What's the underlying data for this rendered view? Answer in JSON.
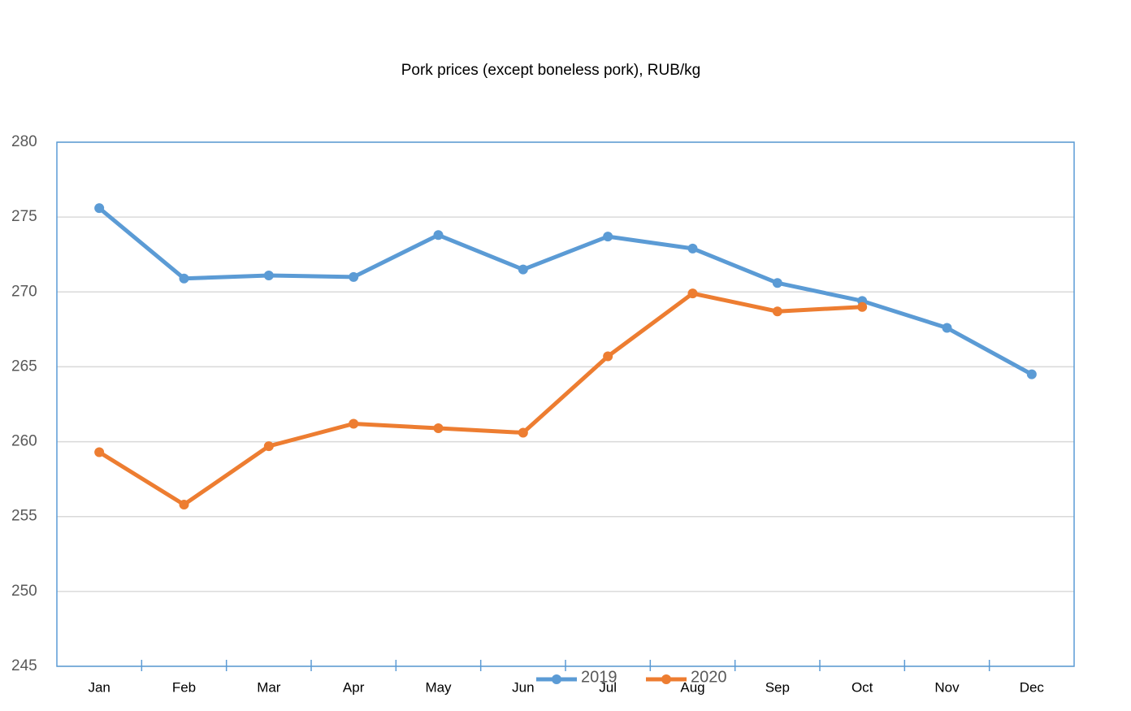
{
  "chart_data": {
    "type": "line",
    "title": "Pork prices (except boneless pork), RUB/kg",
    "categories": [
      "Jan",
      "Feb",
      "Mar",
      "Apr",
      "May",
      "Jun",
      "Jul",
      "Aug",
      "Sep",
      "Oct",
      "Nov",
      "Dec"
    ],
    "series": [
      {
        "name": "2019",
        "color": "#5b9bd5",
        "values": [
          275.6,
          270.9,
          271.1,
          271.0,
          273.8,
          271.5,
          273.7,
          272.9,
          270.6,
          269.4,
          267.6,
          264.5
        ]
      },
      {
        "name": "2020",
        "color": "#ed7d31",
        "values": [
          259.3,
          255.8,
          259.7,
          261.2,
          260.9,
          260.6,
          265.7,
          269.9,
          268.7,
          269.0,
          null,
          null
        ]
      }
    ],
    "ylim": [
      245,
      280
    ],
    "yticks": [
      245,
      250,
      255,
      260,
      265,
      270,
      275,
      280
    ],
    "grid": true,
    "legend": "bottom"
  }
}
